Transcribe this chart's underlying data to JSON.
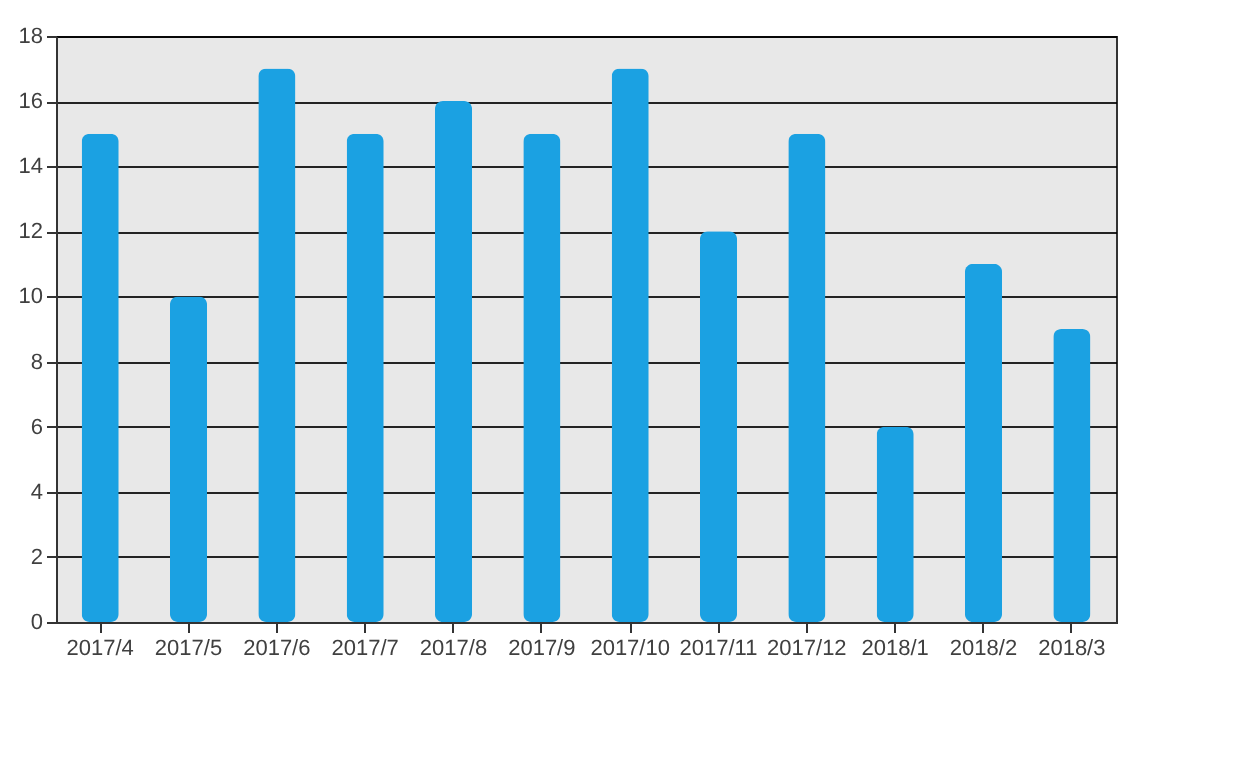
{
  "chart_data": {
    "type": "bar",
    "categories": [
      "2017/4",
      "2017/5",
      "2017/6",
      "2017/7",
      "2017/8",
      "2017/9",
      "2017/10",
      "2017/11",
      "2017/12",
      "2018/1",
      "2018/2",
      "2018/3"
    ],
    "values": [
      15,
      10,
      17,
      15,
      16,
      15,
      17,
      12,
      15,
      6,
      11,
      9
    ],
    "color": "#1ba1e2",
    "ylim": [
      0,
      18
    ],
    "yticks": [
      0,
      2,
      4,
      6,
      8,
      10,
      12,
      14,
      16,
      18
    ],
    "grid": "y"
  }
}
